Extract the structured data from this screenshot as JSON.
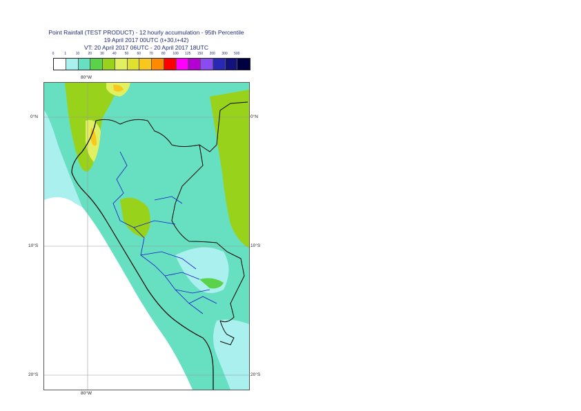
{
  "header": {
    "title_line1": "Point Rainfall (TEST PRODUCT) - 12 hourly accumulation - 95th Percentile",
    "title_line2": "19 April 2017 00UTC (t+30,t+42)",
    "title_line3": "VT: 20 April 2017 06UTC - 20 April 2017 18UTC"
  },
  "legend": {
    "thresholds": [
      "0",
      "1",
      "10",
      "20",
      "30",
      "40",
      "50",
      "60",
      "70",
      "80",
      "100",
      "125",
      "150",
      "200",
      "300",
      "500"
    ],
    "colors": [
      "#ffffff",
      "#aaf0ee",
      "#66e0c0",
      "#5ad34a",
      "#98d21a",
      "#e0f060",
      "#e0e030",
      "#f8c81e",
      "#ff8a00",
      "#ff0000",
      "#ff00ff",
      "#b400d2",
      "#8a4cf0",
      "#2828b4",
      "#12127a",
      "#000040"
    ]
  },
  "map": {
    "lon_label_top": "80°W",
    "lon_label_bottom": "80°W",
    "lat_labels_left": [
      "0°N",
      "10°S",
      "20°S"
    ],
    "lat_labels_right": [
      "0°N",
      "10°S",
      "20°S"
    ],
    "colors": {
      "sea": "#aaf0ee",
      "land_dry": "#ffffff",
      "moderate": "#66e0c0",
      "heavy": "#98d21a",
      "peak": "#f8c81e",
      "border": "#000000",
      "admin": "#1414c8",
      "grid": "#999999"
    }
  }
}
